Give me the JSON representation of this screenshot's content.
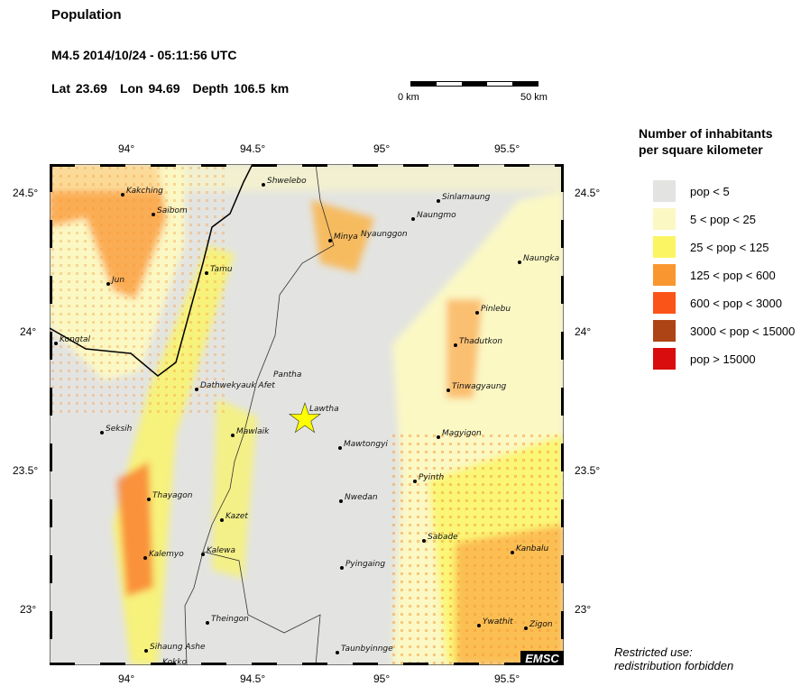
{
  "header": {
    "title": "Population",
    "event": "M4.5  2014/10/24 - 05:11:56 UTC",
    "lat": "Lat 23.69",
    "lon": "Lon  94.69",
    "depth": "Depth 106.5 km"
  },
  "scale_bar": {
    "start": "0 km",
    "end": "50 km"
  },
  "map": {
    "lon_ticks": [
      "94°",
      "94.5°",
      "95°",
      "95.5°"
    ],
    "lat_ticks": [
      "24.5°",
      "24°",
      "23.5°",
      "23°"
    ],
    "epicenter_icon": "star-icon",
    "epicenter_color": "#ffff00",
    "watermark": "EMSC",
    "places": [
      "Kakching",
      "Saibom",
      "Shwelebo",
      "Tamu",
      "Jun",
      "Kongtal",
      "Dathwekyauk Afet",
      "Pantha",
      "Lawtha",
      "Minya",
      "Nyaunggon",
      "Sinlamaung",
      "Naungmo",
      "Naungka",
      "Pinlebu",
      "Thadutkon",
      "Tinwagyaung",
      "Magyigon",
      "Mawtongyi",
      "Pyinth",
      "Nwedan",
      "Seksih",
      "Mawlaik",
      "Thayagon",
      "Kazet",
      "Kalemyo",
      "Kalewa",
      "Sabade",
      "Kanbalu",
      "Pyingaing",
      "Theingon",
      "Ywathit",
      "Zigon",
      "Sihaung Ashe",
      "Taunbyinnge",
      "Kokko"
    ]
  },
  "legend": {
    "title_line1": "Number of inhabitants",
    "title_line2": "per square kilometer",
    "items": [
      {
        "label": "pop < 5",
        "color": "#e3e4e1"
      },
      {
        "label": "5 < pop < 25",
        "color": "#fbf8c4"
      },
      {
        "label": "25 < pop < 125",
        "color": "#fbf563"
      },
      {
        "label": "125 < pop < 600",
        "color": "#f9962f"
      },
      {
        "label": "600 < pop < 3000",
        "color": "#fb5418"
      },
      {
        "label": "3000 < pop < 15000",
        "color": "#ad4415"
      },
      {
        "label": "pop > 15000",
        "color": "#d90d0d"
      }
    ]
  },
  "note_line1": "Restricted use:",
  "note_line2": "redistribution forbidden"
}
